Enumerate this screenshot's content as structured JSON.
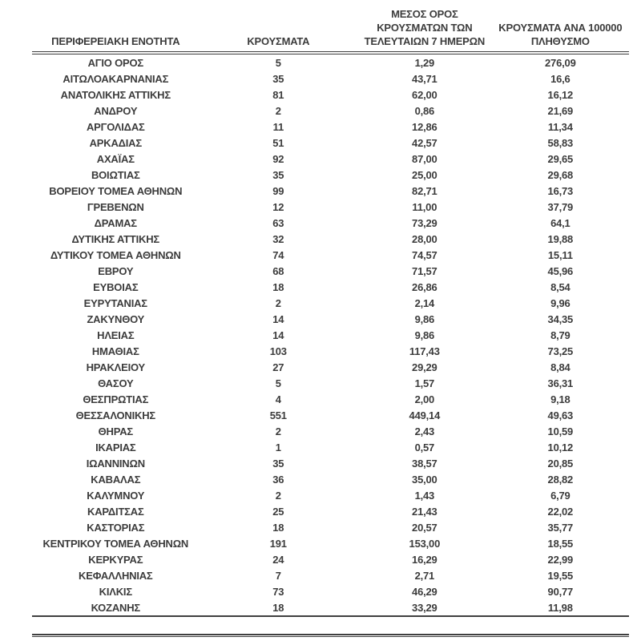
{
  "colors": {
    "background": "#ffffff",
    "text": "#3c3c3c",
    "rule": "#3f3f3f"
  },
  "table": {
    "columns": [
      {
        "id": "region",
        "label_lines": [
          "ΠΕΡΙΦΕΡΕΙΑΚΗ ΕΝΟΤΗΤΑ"
        ]
      },
      {
        "id": "cases",
        "label_lines": [
          "ΚΡΟΥΣΜΑΤΑ"
        ]
      },
      {
        "id": "avg7",
        "label_lines": [
          "ΜΕΣΟΣ ΟΡΟΣ",
          "ΚΡΟΥΣΜΑΤΩΝ ΤΩΝ",
          "ΤΕΛΕΥΤΑΙΩΝ 7 ΗΜΕΡΩΝ"
        ]
      },
      {
        "id": "per100k",
        "label_lines": [
          "ΚΡΟΥΣΜΑΤΑ ΑΝΑ 100000",
          "ΠΛΗΘΥΣΜΟ"
        ]
      }
    ],
    "rows": [
      [
        "ΑΓΙΟ ΟΡΟΣ",
        "5",
        "1,29",
        "276,09"
      ],
      [
        "ΑΙΤΩΛΟΑΚΑΡΝΑΝΙΑΣ",
        "35",
        "43,71",
        "16,6"
      ],
      [
        "ΑΝΑΤΟΛΙΚΗΣ ΑΤΤΙΚΗΣ",
        "81",
        "62,00",
        "16,12"
      ],
      [
        "ΑΝΔΡΟΥ",
        "2",
        "0,86",
        "21,69"
      ],
      [
        "ΑΡΓΟΛΙΔΑΣ",
        "11",
        "12,86",
        "11,34"
      ],
      [
        "ΑΡΚΑΔΙΑΣ",
        "51",
        "42,57",
        "58,83"
      ],
      [
        "ΑΧΑΪΑΣ",
        "92",
        "87,00",
        "29,65"
      ],
      [
        "ΒΟΙΩΤΙΑΣ",
        "35",
        "25,00",
        "29,68"
      ],
      [
        "ΒΟΡΕΙΟΥ ΤΟΜΕΑ ΑΘΗΝΩΝ",
        "99",
        "82,71",
        "16,73"
      ],
      [
        "ΓΡΕΒΕΝΩΝ",
        "12",
        "11,00",
        "37,79"
      ],
      [
        "ΔΡΑΜΑΣ",
        "63",
        "73,29",
        "64,1"
      ],
      [
        "ΔΥΤΙΚΗΣ ΑΤΤΙΚΗΣ",
        "32",
        "28,00",
        "19,88"
      ],
      [
        "ΔΥΤΙΚΟΥ ΤΟΜΕΑ ΑΘΗΝΩΝ",
        "74",
        "74,57",
        "15,11"
      ],
      [
        "ΕΒΡΟΥ",
        "68",
        "71,57",
        "45,96"
      ],
      [
        "ΕΥΒΟΙΑΣ",
        "18",
        "26,86",
        "8,54"
      ],
      [
        "ΕΥΡΥΤΑΝΙΑΣ",
        "2",
        "2,14",
        "9,96"
      ],
      [
        "ΖΑΚΥΝΘΟΥ",
        "14",
        "9,86",
        "34,35"
      ],
      [
        "ΗΛΕΙΑΣ",
        "14",
        "9,86",
        "8,79"
      ],
      [
        "ΗΜΑΘΙΑΣ",
        "103",
        "117,43",
        "73,25"
      ],
      [
        "ΗΡΑΚΛΕΙΟΥ",
        "27",
        "29,29",
        "8,84"
      ],
      [
        "ΘΑΣΟΥ",
        "5",
        "1,57",
        "36,31"
      ],
      [
        "ΘΕΣΠΡΩΤΙΑΣ",
        "4",
        "2,00",
        "9,18"
      ],
      [
        "ΘΕΣΣΑΛΟΝΙΚΗΣ",
        "551",
        "449,14",
        "49,63"
      ],
      [
        "ΘΗΡΑΣ",
        "2",
        "2,43",
        "10,59"
      ],
      [
        "ΙΚΑΡΙΑΣ",
        "1",
        "0,57",
        "10,12"
      ],
      [
        "ΙΩΑΝΝΙΝΩΝ",
        "35",
        "38,57",
        "20,85"
      ],
      [
        "ΚΑΒΑΛΑΣ",
        "36",
        "35,00",
        "28,82"
      ],
      [
        "ΚΑΛΥΜΝΟΥ",
        "2",
        "1,43",
        "6,79"
      ],
      [
        "ΚΑΡΔΙΤΣΑΣ",
        "25",
        "21,43",
        "22,02"
      ],
      [
        "ΚΑΣΤΟΡΙΑΣ",
        "18",
        "20,57",
        "35,77"
      ],
      [
        "ΚΕΝΤΡΙΚΟΥ ΤΟΜΕΑ ΑΘΗΝΩΝ",
        "191",
        "153,00",
        "18,55"
      ],
      [
        "ΚΕΡΚΥΡΑΣ",
        "24",
        "16,29",
        "22,99"
      ],
      [
        "ΚΕΦΑΛΛΗΝΙΑΣ",
        "7",
        "2,71",
        "19,55"
      ],
      [
        "ΚΙΛΚΙΣ",
        "73",
        "46,29",
        "90,77"
      ],
      [
        "ΚΟΖΑΝΗΣ",
        "18",
        "33,29",
        "11,98"
      ]
    ]
  }
}
